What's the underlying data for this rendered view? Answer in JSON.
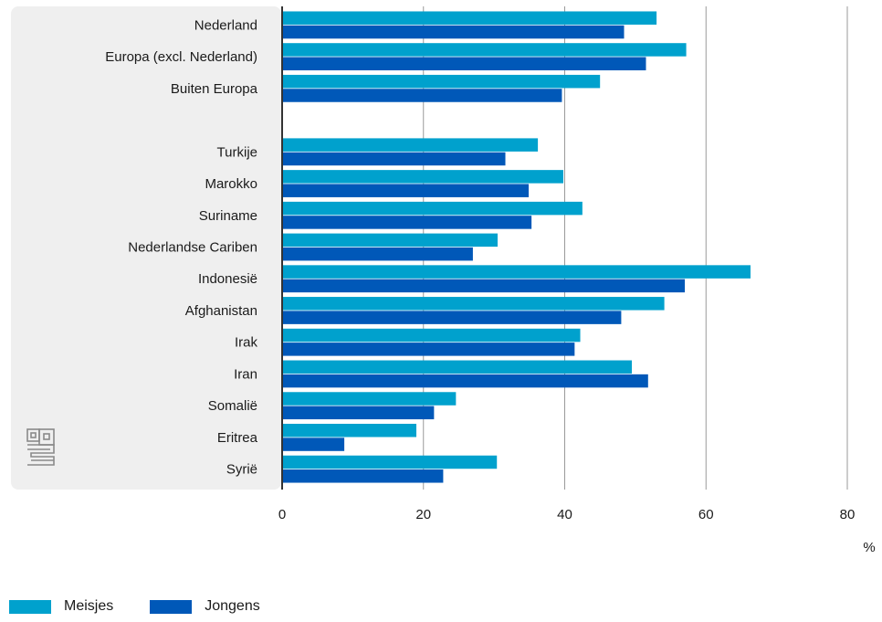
{
  "chart_data": {
    "type": "bar",
    "orientation": "horizontal",
    "title": "",
    "xlabel": "",
    "ylabel": "",
    "unit": "%",
    "xlim": [
      0,
      80
    ],
    "xticks": [
      "0",
      "20",
      "40",
      "60",
      "80"
    ],
    "grid": true,
    "legend_position": "bottom-left",
    "categories": [
      "Nederland",
      "Europa (excl. Nederland)",
      "Buiten Europa",
      "",
      "Turkije",
      "Marokko",
      "Suriname",
      "Nederlandse Cariben",
      "Indonesië",
      "Afghanistan",
      "Irak",
      "Iran",
      "Somalië",
      "Eritrea",
      "Syrië"
    ],
    "series": [
      {
        "name": "Meisjes",
        "color": "#00a1cd",
        "values": [
          53,
          57.2,
          45,
          null,
          36.2,
          39.8,
          42.5,
          30.5,
          66.3,
          54.1,
          42.2,
          49.5,
          24.6,
          19,
          30.4
        ]
      },
      {
        "name": "Jongens",
        "color": "#0058b8",
        "values": [
          48.4,
          51.5,
          39.6,
          null,
          31.6,
          34.9,
          35.3,
          27,
          57,
          48,
          41.4,
          51.8,
          21.5,
          8.8,
          22.8
        ]
      }
    ]
  },
  "legend": {
    "items": [
      {
        "label": "Meisjes",
        "color": "#00a1cd"
      },
      {
        "label": "Jongens",
        "color": "#0058b8"
      }
    ]
  },
  "logo": {
    "icon": "cbs-logo-icon"
  }
}
